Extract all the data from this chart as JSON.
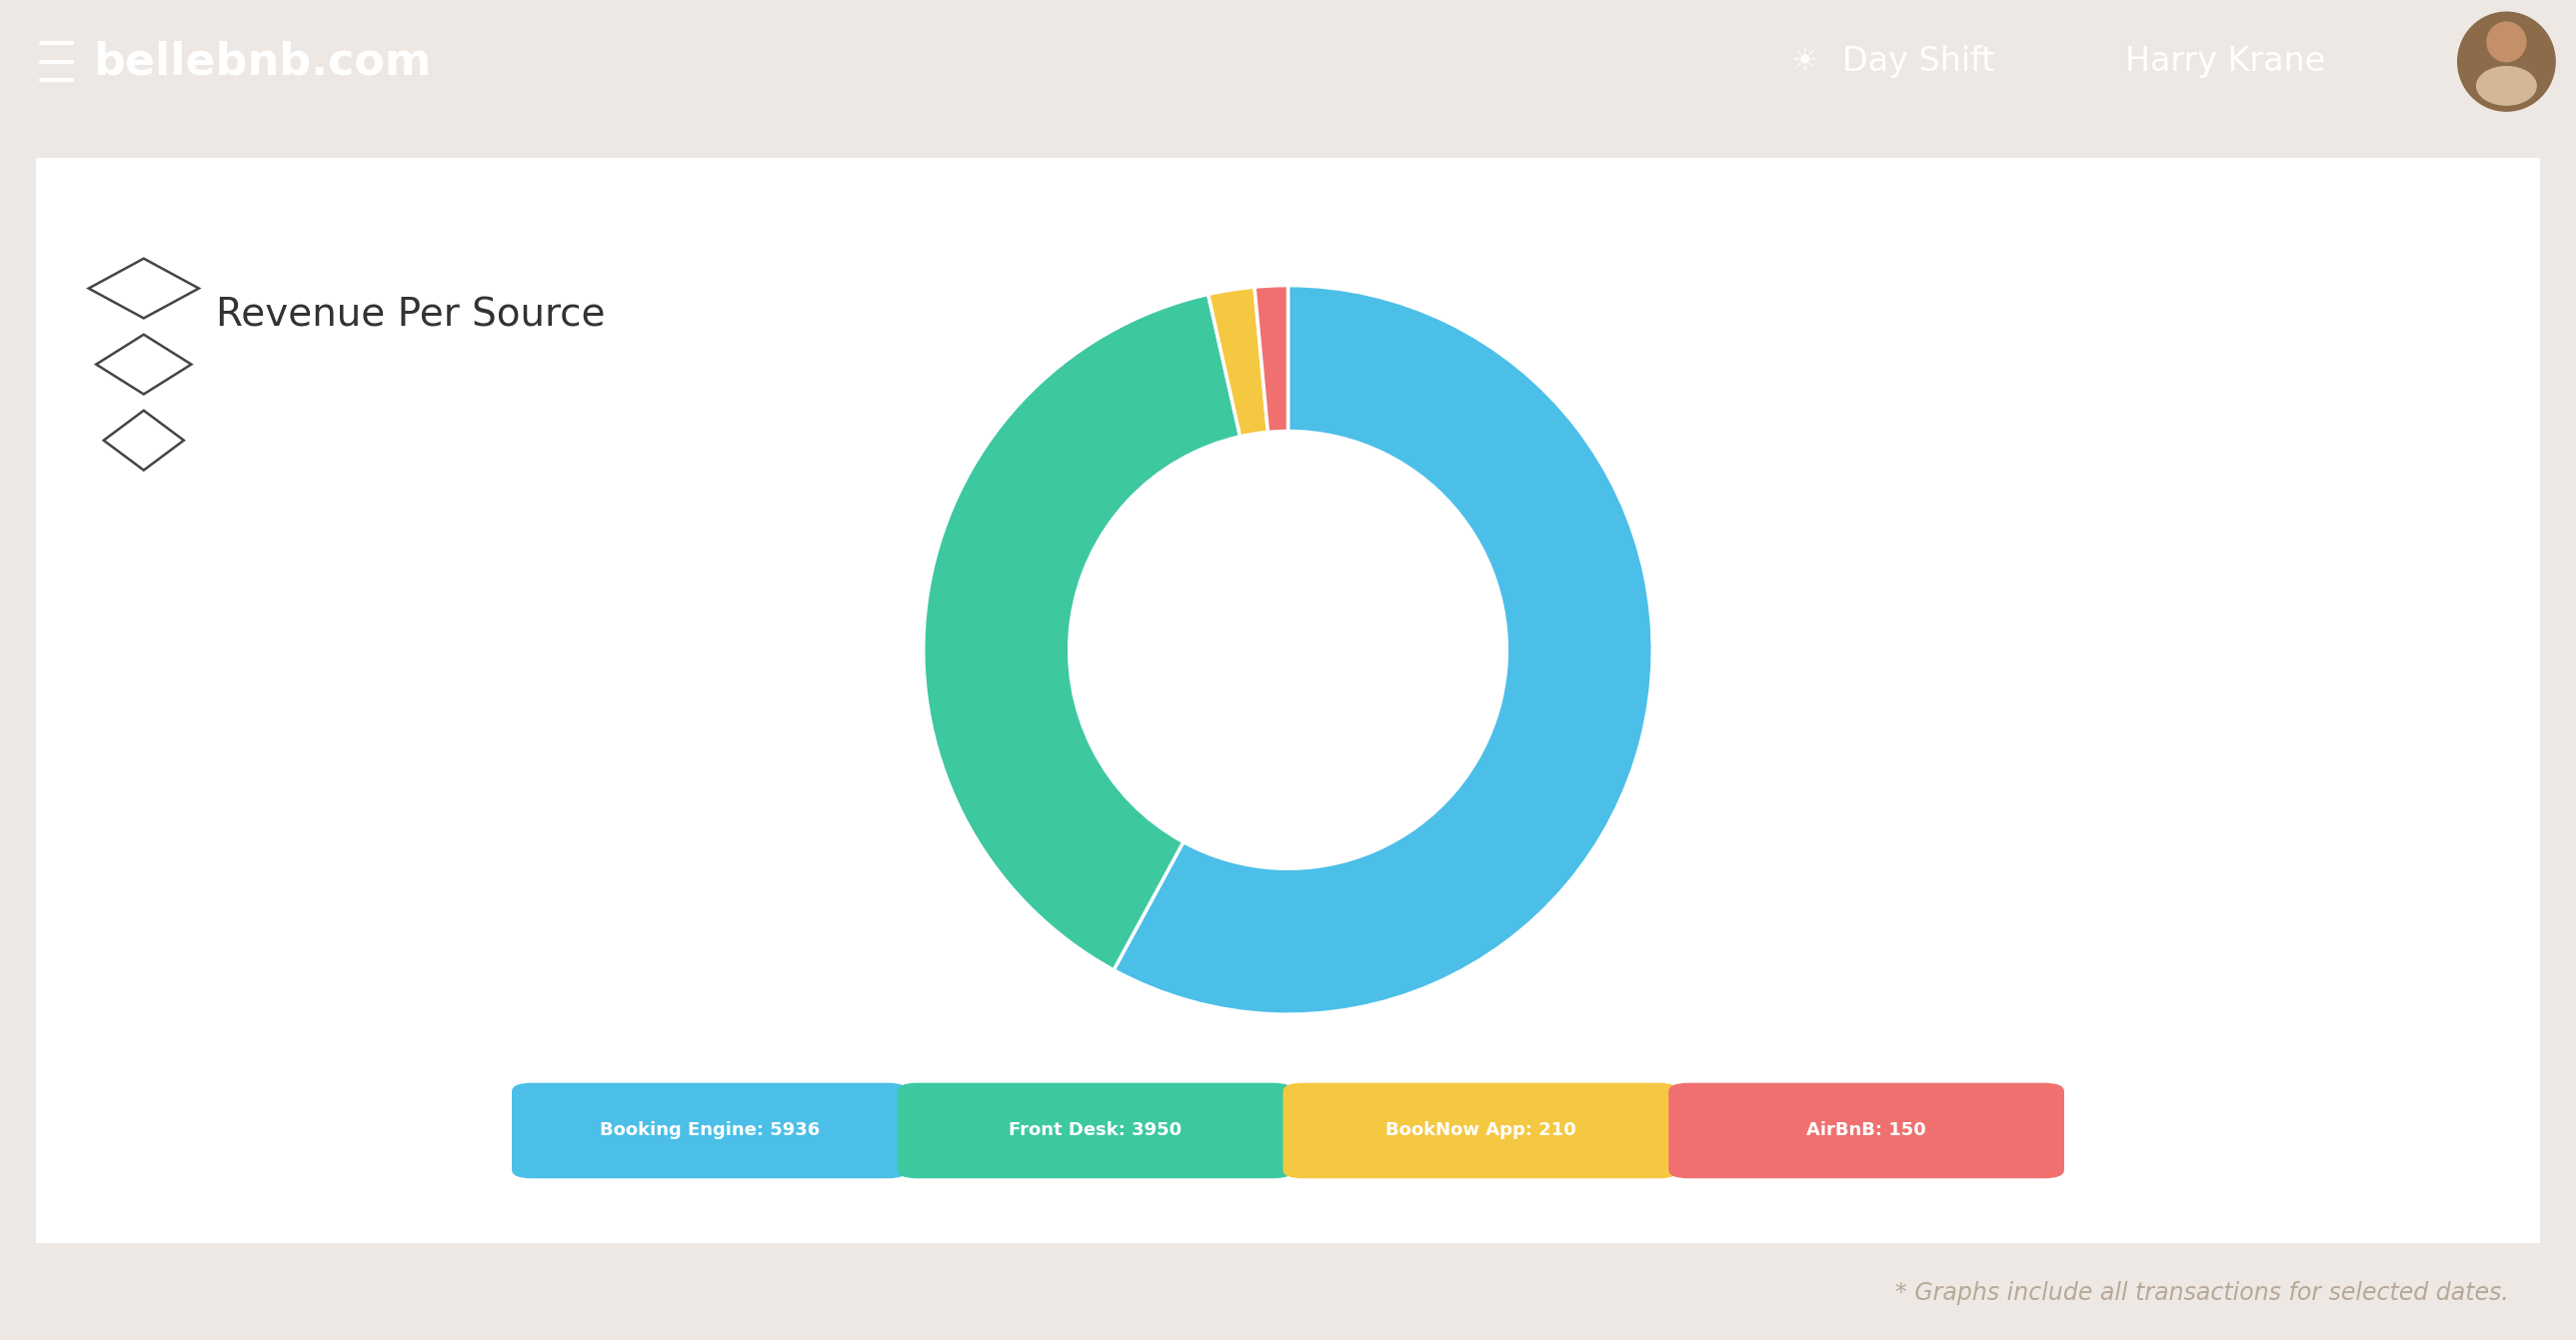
{
  "title": "Revenue Per Source",
  "header_bg": "#6B3FA0",
  "header_text": "bellebnb.com",
  "page_bg": "#EDE8E3",
  "card_bg": "#FFFFFF",
  "footer_text": "* Graphs include all transactions for selected dates.",
  "chart_values": [
    5936,
    3950,
    210,
    150
  ],
  "chart_labels": [
    "Booking Engine: 5936",
    "Front Desk: 3950",
    "BookNow App: 210",
    "AirBnB: 150"
  ],
  "chart_colors": [
    "#4BBFE8",
    "#3DC8A0",
    "#F5C842",
    "#F07070"
  ],
  "donut_width": 0.4
}
